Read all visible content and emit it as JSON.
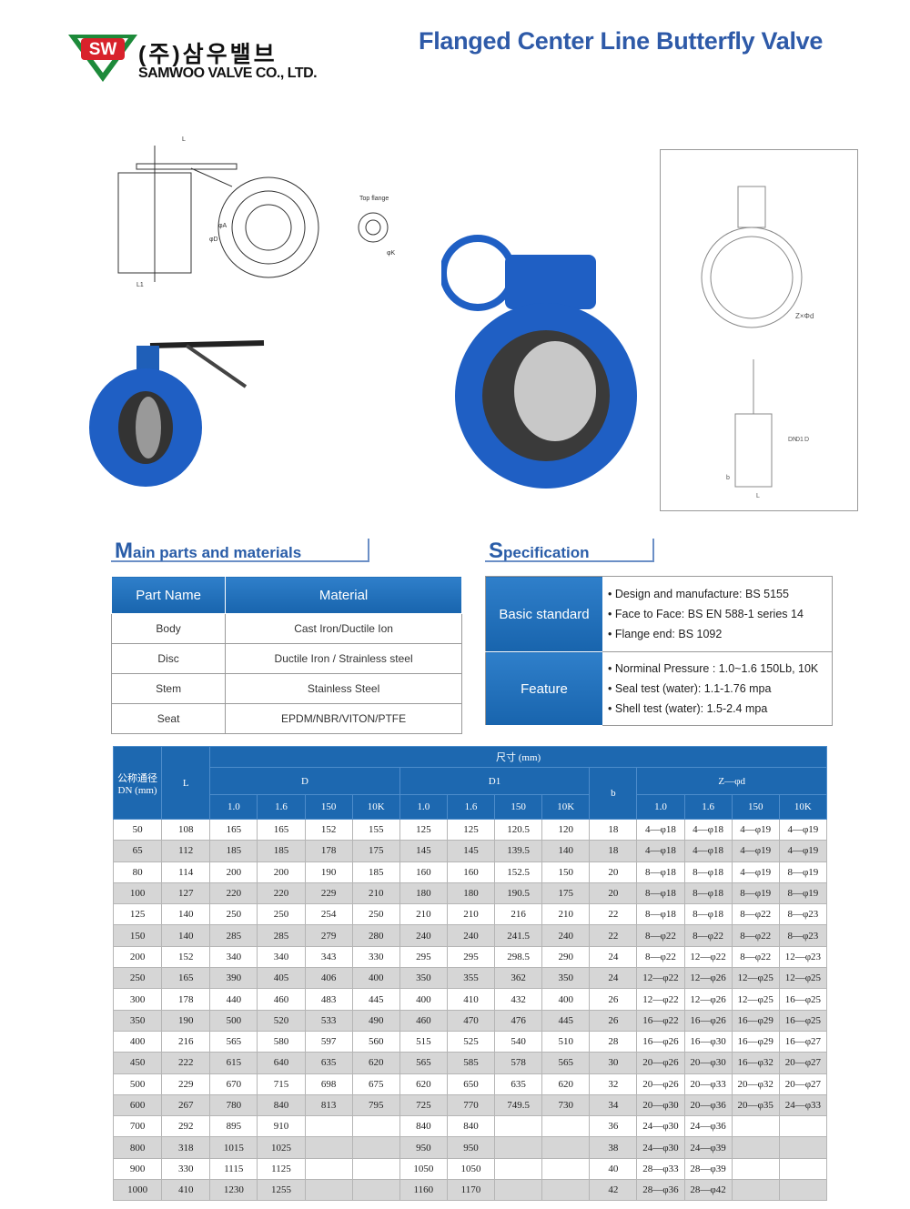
{
  "header": {
    "logo": "SW",
    "company_kr": "(주)삼우밸브",
    "company_en": "SAMWOO VALVE CO., LTD.",
    "title": "Flanged Center Line Butterfly Valve"
  },
  "drawings": {
    "labels": [
      "Top flange",
      "φA",
      "φD",
      "φK",
      "L",
      "L1",
      "Z×Φd",
      "DN",
      "D1",
      "D",
      "L",
      "b"
    ]
  },
  "parts": {
    "title": "Main parts and materials",
    "header": [
      "Part Name",
      "Material"
    ],
    "rows": [
      [
        "Body",
        "Cast Iron/Ductile Ion"
      ],
      [
        "Disc",
        "Ductile Iron / Strainless steel"
      ],
      [
        "Stem",
        "Stainless Steel"
      ],
      [
        "Seat",
        "EPDM/NBR/VITON/PTFE"
      ]
    ]
  },
  "spec": {
    "title": "Specification",
    "rows": [
      {
        "label": "Basic standard",
        "items": [
          "Design and manufacture: BS 5155",
          "Face to Face: BS EN 588-1 series 14",
          "Flange end: BS 1092"
        ]
      },
      {
        "label": "Feature",
        "items": [
          "Norminal Pressure : 1.0~1.6 150Lb, 10K",
          "Seal test (water): 1.1-1.76 mpa",
          "Shell test (water): 1.5-2.4 mpa"
        ]
      }
    ]
  },
  "table": {
    "header": {
      "dn": "公称通径 DN (mm)",
      "l": "L",
      "dims": "尺寸 (mm)",
      "d": "D",
      "d1": "D1",
      "b": "b",
      "z": "Z—φd",
      "classes": [
        "1.0",
        "1.6",
        "150",
        "10K"
      ]
    },
    "rows": [
      [
        "50",
        "108",
        "165",
        "165",
        "152",
        "155",
        "125",
        "125",
        "120.5",
        "120",
        "18",
        "4—φ18",
        "4—φ18",
        "4—φ19",
        "4—φ19"
      ],
      [
        "65",
        "112",
        "185",
        "185",
        "178",
        "175",
        "145",
        "145",
        "139.5",
        "140",
        "18",
        "4—φ18",
        "4—φ18",
        "4—φ19",
        "4—φ19"
      ],
      [
        "80",
        "114",
        "200",
        "200",
        "190",
        "185",
        "160",
        "160",
        "152.5",
        "150",
        "20",
        "8—φ18",
        "8—φ18",
        "4—φ19",
        "8—φ19"
      ],
      [
        "100",
        "127",
        "220",
        "220",
        "229",
        "210",
        "180",
        "180",
        "190.5",
        "175",
        "20",
        "8—φ18",
        "8—φ18",
        "8—φ19",
        "8—φ19"
      ],
      [
        "125",
        "140",
        "250",
        "250",
        "254",
        "250",
        "210",
        "210",
        "216",
        "210",
        "22",
        "8—φ18",
        "8—φ18",
        "8—φ22",
        "8—φ23"
      ],
      [
        "150",
        "140",
        "285",
        "285",
        "279",
        "280",
        "240",
        "240",
        "241.5",
        "240",
        "22",
        "8—φ22",
        "8—φ22",
        "8—φ22",
        "8—φ23"
      ],
      [
        "200",
        "152",
        "340",
        "340",
        "343",
        "330",
        "295",
        "295",
        "298.5",
        "290",
        "24",
        "8—φ22",
        "12—φ22",
        "8—φ22",
        "12—φ23"
      ],
      [
        "250",
        "165",
        "390",
        "405",
        "406",
        "400",
        "350",
        "355",
        "362",
        "350",
        "24",
        "12—φ22",
        "12—φ26",
        "12—φ25",
        "12—φ25"
      ],
      [
        "300",
        "178",
        "440",
        "460",
        "483",
        "445",
        "400",
        "410",
        "432",
        "400",
        "26",
        "12—φ22",
        "12—φ26",
        "12—φ25",
        "16—φ25"
      ],
      [
        "350",
        "190",
        "500",
        "520",
        "533",
        "490",
        "460",
        "470",
        "476",
        "445",
        "26",
        "16—φ22",
        "16—φ26",
        "16—φ29",
        "16—φ25"
      ],
      [
        "400",
        "216",
        "565",
        "580",
        "597",
        "560",
        "515",
        "525",
        "540",
        "510",
        "28",
        "16—φ26",
        "16—φ30",
        "16—φ29",
        "16—φ27"
      ],
      [
        "450",
        "222",
        "615",
        "640",
        "635",
        "620",
        "565",
        "585",
        "578",
        "565",
        "30",
        "20—φ26",
        "20—φ30",
        "16—φ32",
        "20—φ27"
      ],
      [
        "500",
        "229",
        "670",
        "715",
        "698",
        "675",
        "620",
        "650",
        "635",
        "620",
        "32",
        "20—φ26",
        "20—φ33",
        "20—φ32",
        "20—φ27"
      ],
      [
        "600",
        "267",
        "780",
        "840",
        "813",
        "795",
        "725",
        "770",
        "749.5",
        "730",
        "34",
        "20—φ30",
        "20—φ36",
        "20—φ35",
        "24—φ33"
      ],
      [
        "700",
        "292",
        "895",
        "910",
        null,
        null,
        "840",
        "840",
        null,
        null,
        "36",
        "24—φ30",
        "24—φ36",
        null,
        null
      ],
      [
        "800",
        "318",
        "1015",
        "1025",
        null,
        null,
        "950",
        "950",
        null,
        null,
        "38",
        "24—φ30",
        "24—φ39",
        null,
        null
      ],
      [
        "900",
        "330",
        "1115",
        "1125",
        null,
        null,
        "1050",
        "1050",
        null,
        null,
        "40",
        "28—φ33",
        "28—φ39",
        null,
        null
      ],
      [
        "1000",
        "410",
        "1230",
        "1255",
        null,
        null,
        "1160",
        "1170",
        null,
        null,
        "42",
        "28—φ36",
        "28—φ42",
        null,
        null
      ]
    ]
  }
}
